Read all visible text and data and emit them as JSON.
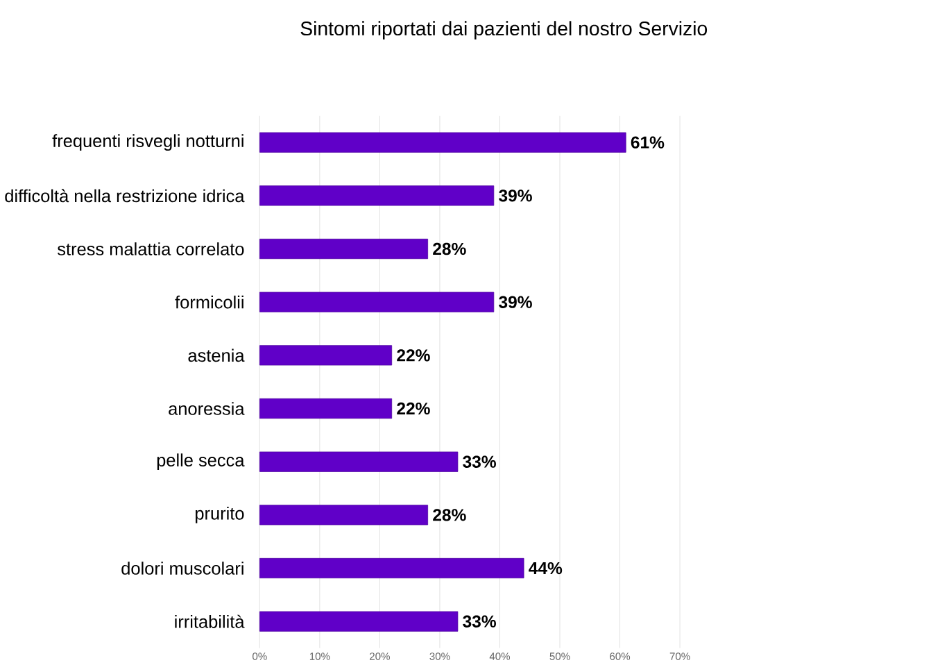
{
  "chart_data": {
    "type": "bar",
    "orientation": "horizontal",
    "title": "Sintomi riportati dai pazienti del nostro Servizio",
    "categories": [
      "frequenti risvegli notturni",
      "difficoltà nella restrizione idrica",
      "stress malattia correlato",
      "formicolii",
      "astenia",
      "anoressia",
      "pelle secca",
      "prurito",
      "dolori muscolari",
      "irritabilità"
    ],
    "values": [
      61,
      39,
      28,
      39,
      22,
      22,
      33,
      28,
      44,
      33
    ],
    "value_labels": [
      "61%",
      "39%",
      "28%",
      "39%",
      "22%",
      "22%",
      "33%",
      "28%",
      "44%",
      "33%"
    ],
    "color": "#6000c8",
    "xlim": [
      0,
      70
    ],
    "xticks": [
      {
        "value": 0,
        "label": "0%"
      },
      {
        "value": 10,
        "label": "10%"
      },
      {
        "value": 20,
        "label": "20%"
      },
      {
        "value": 30,
        "label": "30%"
      },
      {
        "value": 40,
        "label": "40%"
      },
      {
        "value": 50,
        "label": "50%"
      },
      {
        "value": 60,
        "label": "60%"
      },
      {
        "value": 70,
        "label": "70%"
      }
    ],
    "grid": "x"
  }
}
